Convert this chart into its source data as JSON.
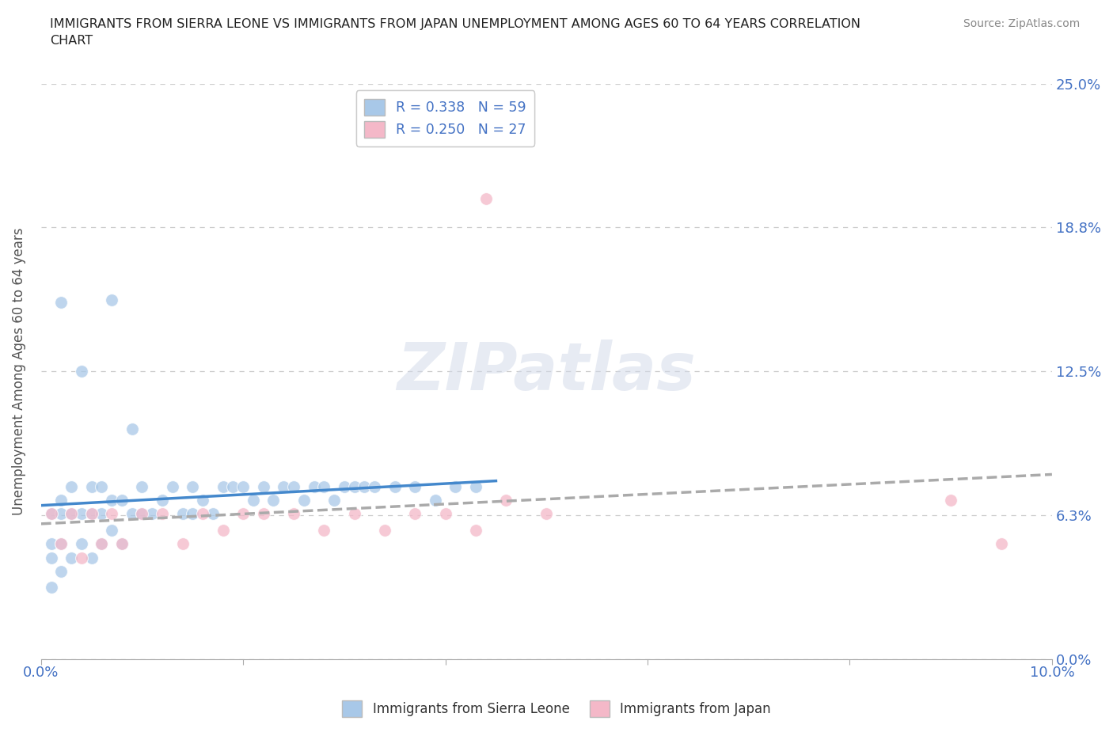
{
  "title": "IMMIGRANTS FROM SIERRA LEONE VS IMMIGRANTS FROM JAPAN UNEMPLOYMENT AMONG AGES 60 TO 64 YEARS CORRELATION\nCHART",
  "source": "Source: ZipAtlas.com",
  "ylabel": "Unemployment Among Ages 60 to 64 years",
  "xlim": [
    0.0,
    0.1
  ],
  "ylim": [
    0.0,
    0.25
  ],
  "ytick_vals": [
    0.0,
    0.0625,
    0.125,
    0.1875,
    0.25
  ],
  "ytick_labels": [
    "0.0%",
    "6.3%",
    "12.5%",
    "18.8%",
    "25.0%"
  ],
  "xtick_vals": [
    0.0,
    0.02,
    0.04,
    0.06,
    0.08,
    0.1
  ],
  "xtick_labels": [
    "0.0%",
    "",
    "",
    "",
    "",
    "10.0%"
  ],
  "color_sl": "#a8c8e8",
  "color_jp": "#f4b8c8",
  "color_sl_line": "#4488cc",
  "color_jp_line": "#cc4488",
  "color_jp_trend": "#aaaaaa",
  "R_sl": 0.338,
  "N_sl": 59,
  "R_jp": 0.25,
  "N_jp": 27,
  "legend_label_sl": "Immigrants from Sierra Leone",
  "legend_label_jp": "Immigrants from Japan",
  "watermark": "ZIPatlas",
  "sl_x": [
    0.001,
    0.001,
    0.001,
    0.001,
    0.002,
    0.002,
    0.002,
    0.002,
    0.003,
    0.003,
    0.003,
    0.004,
    0.004,
    0.005,
    0.005,
    0.005,
    0.006,
    0.006,
    0.006,
    0.007,
    0.007,
    0.008,
    0.008,
    0.009,
    0.01,
    0.01,
    0.011,
    0.012,
    0.013,
    0.014,
    0.015,
    0.015,
    0.016,
    0.017,
    0.018,
    0.019,
    0.02,
    0.021,
    0.022,
    0.023,
    0.024,
    0.025,
    0.026,
    0.027,
    0.028,
    0.029,
    0.03,
    0.031,
    0.032,
    0.033,
    0.035,
    0.037,
    0.039,
    0.041,
    0.043,
    0.002,
    0.004,
    0.007,
    0.009
  ],
  "sl_y": [
    0.063,
    0.05,
    0.044,
    0.031,
    0.069,
    0.063,
    0.05,
    0.038,
    0.075,
    0.063,
    0.044,
    0.063,
    0.05,
    0.075,
    0.063,
    0.044,
    0.075,
    0.063,
    0.05,
    0.069,
    0.056,
    0.069,
    0.05,
    0.063,
    0.075,
    0.063,
    0.063,
    0.069,
    0.075,
    0.063,
    0.075,
    0.063,
    0.069,
    0.063,
    0.075,
    0.075,
    0.075,
    0.069,
    0.075,
    0.069,
    0.075,
    0.075,
    0.069,
    0.075,
    0.075,
    0.069,
    0.075,
    0.075,
    0.075,
    0.075,
    0.075,
    0.075,
    0.069,
    0.075,
    0.075,
    0.155,
    0.125,
    0.156,
    0.1
  ],
  "jp_x": [
    0.001,
    0.002,
    0.003,
    0.004,
    0.005,
    0.006,
    0.007,
    0.008,
    0.01,
    0.012,
    0.014,
    0.016,
    0.018,
    0.02,
    0.022,
    0.025,
    0.028,
    0.031,
    0.034,
    0.037,
    0.04,
    0.043,
    0.046,
    0.05,
    0.044,
    0.09,
    0.095
  ],
  "jp_y": [
    0.063,
    0.05,
    0.063,
    0.044,
    0.063,
    0.05,
    0.063,
    0.05,
    0.063,
    0.063,
    0.05,
    0.063,
    0.056,
    0.063,
    0.063,
    0.063,
    0.056,
    0.063,
    0.056,
    0.063,
    0.063,
    0.056,
    0.069,
    0.063,
    0.2,
    0.069,
    0.05
  ]
}
